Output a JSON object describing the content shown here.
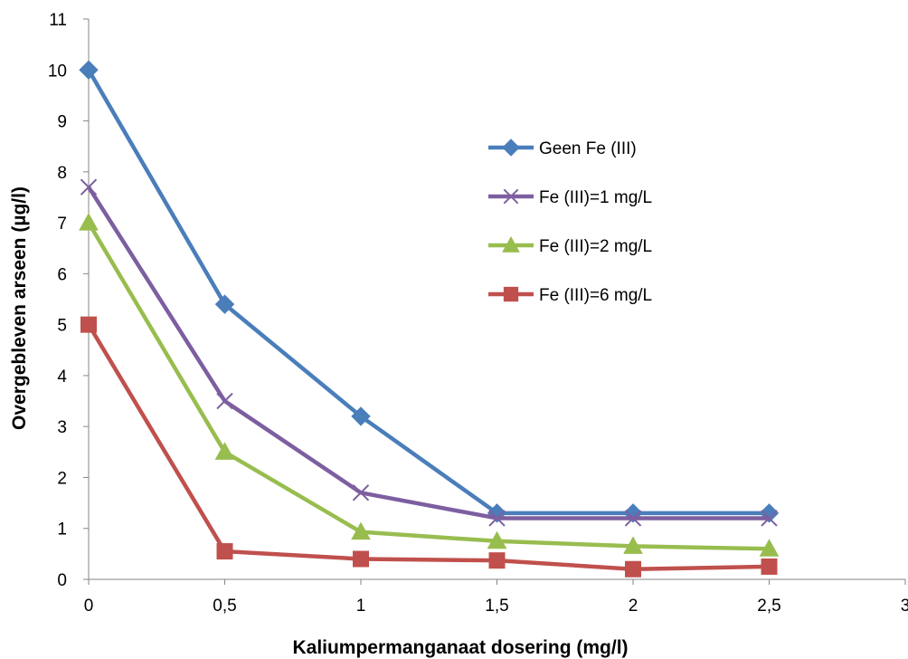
{
  "chart_data": {
    "type": "line",
    "xlabel": "Kaliumpermanganaat dosering (mg/l)",
    "ylabel": "Overgebleven arseen (µg/l)",
    "xlim": [
      0,
      3
    ],
    "ylim": [
      0,
      11
    ],
    "x_ticks": [
      "0",
      "0,5",
      "1",
      "1,5",
      "2",
      "2,5",
      "3"
    ],
    "y_ticks": [
      "0",
      "1",
      "2",
      "3",
      "4",
      "5",
      "6",
      "7",
      "8",
      "9",
      "10",
      "11"
    ],
    "x": [
      0,
      0.5,
      1,
      1.5,
      2,
      2.5
    ],
    "grid": false,
    "legend_position": "right",
    "series": [
      {
        "name": "Geen Fe (III)",
        "color": "#4a7ebb",
        "marker": "diamond",
        "values": [
          10.0,
          5.4,
          3.2,
          1.3,
          1.3,
          1.3
        ]
      },
      {
        "name": "Fe (III)=1 mg/L",
        "color": "#7d5fa0",
        "marker": "x",
        "values": [
          7.7,
          3.5,
          1.7,
          1.2,
          1.2,
          1.2
        ]
      },
      {
        "name": "Fe (III)=2 mg/L",
        "color": "#98bd4f",
        "marker": "triangle",
        "values": [
          7.0,
          2.5,
          0.93,
          0.75,
          0.65,
          0.6
        ]
      },
      {
        "name": "Fe (III)=6 mg/L",
        "color": "#c0504d",
        "marker": "square",
        "values": [
          5.0,
          0.55,
          0.4,
          0.37,
          0.2,
          0.25
        ]
      }
    ]
  }
}
